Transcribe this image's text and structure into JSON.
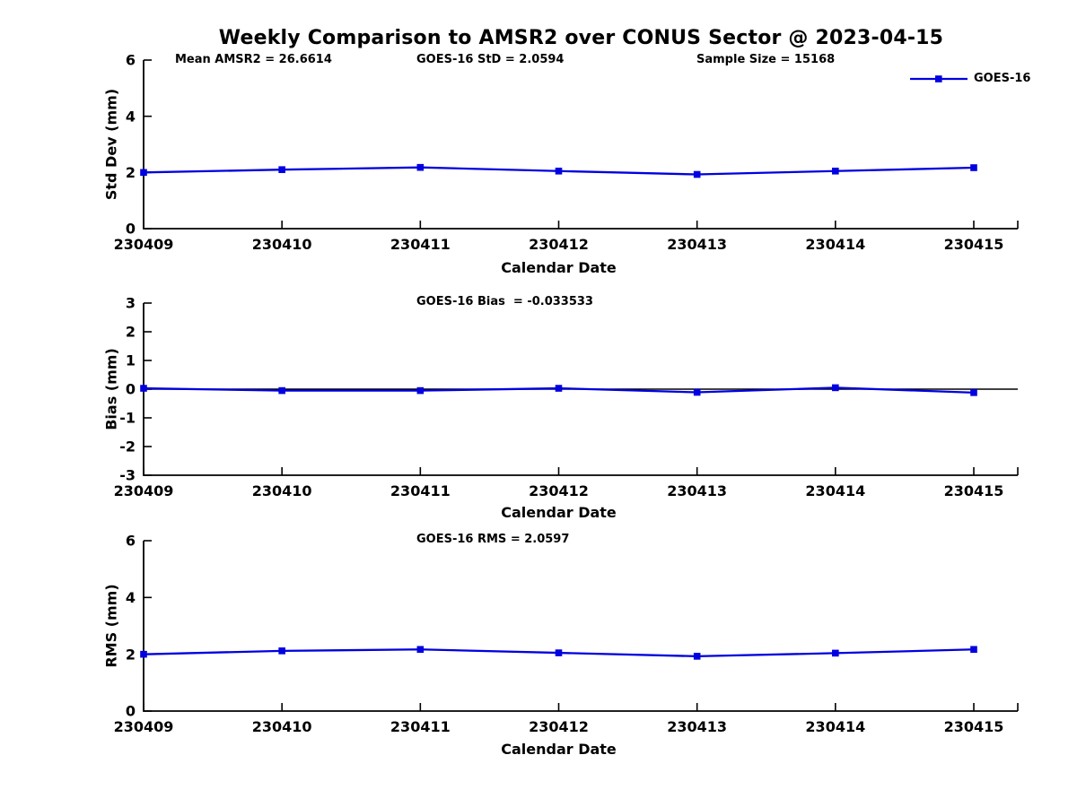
{
  "title": "Weekly Comparison to AMSR2 over CONUS Sector @ 2023-04-15",
  "annotations": {
    "mean_amsr2": "Mean AMSR2 = 26.6614",
    "goes16_std": "GOES-16 StD = 2.0594",
    "sample_size": "Sample Size = 15168"
  },
  "legend": {
    "label": "GOES-16",
    "marker": "square",
    "position": "top-right"
  },
  "colors": {
    "line": "#0000E0",
    "axis": "#000000",
    "background": "#FFFFFF",
    "text": "#000000"
  },
  "chart_data": [
    {
      "type": "line",
      "panel": "std-dev",
      "title": "",
      "ylabel": "Std Dev (mm)",
      "xlabel": "Calendar Date",
      "ylim": [
        0,
        6
      ],
      "yticks": [
        0,
        2,
        4,
        6
      ],
      "grid": false,
      "zero_line": false,
      "x": [
        "230409",
        "230410",
        "230411",
        "230412",
        "230413",
        "230414",
        "230415"
      ],
      "series": [
        {
          "name": "GOES-16",
          "values": [
            2.0,
            2.1,
            2.18,
            2.05,
            1.93,
            2.05,
            2.17
          ]
        }
      ]
    },
    {
      "type": "line",
      "panel": "bias",
      "title": "GOES-16 Bias  = -0.033533",
      "ylabel": "Bias (mm)",
      "xlabel": "Calendar Date",
      "ylim": [
        -3,
        3
      ],
      "yticks": [
        -3,
        -2,
        -1,
        0,
        1,
        2,
        3
      ],
      "grid": false,
      "zero_line": true,
      "x": [
        "230409",
        "230410",
        "230411",
        "230412",
        "230413",
        "230414",
        "230415"
      ],
      "series": [
        {
          "name": "GOES-16",
          "values": [
            0.03,
            -0.05,
            -0.05,
            0.03,
            -0.11,
            0.05,
            -0.12
          ]
        }
      ]
    },
    {
      "type": "line",
      "panel": "rms",
      "title": "GOES-16 RMS = 2.0597",
      "ylabel": "RMS (mm)",
      "xlabel": "Calendar Date",
      "ylim": [
        0,
        6
      ],
      "yticks": [
        0,
        2,
        4,
        6
      ],
      "grid": false,
      "zero_line": false,
      "x": [
        "230409",
        "230410",
        "230411",
        "230412",
        "230413",
        "230414",
        "230415"
      ],
      "series": [
        {
          "name": "GOES-16",
          "values": [
            2.0,
            2.12,
            2.17,
            2.05,
            1.93,
            2.04,
            2.17
          ]
        }
      ]
    }
  ]
}
